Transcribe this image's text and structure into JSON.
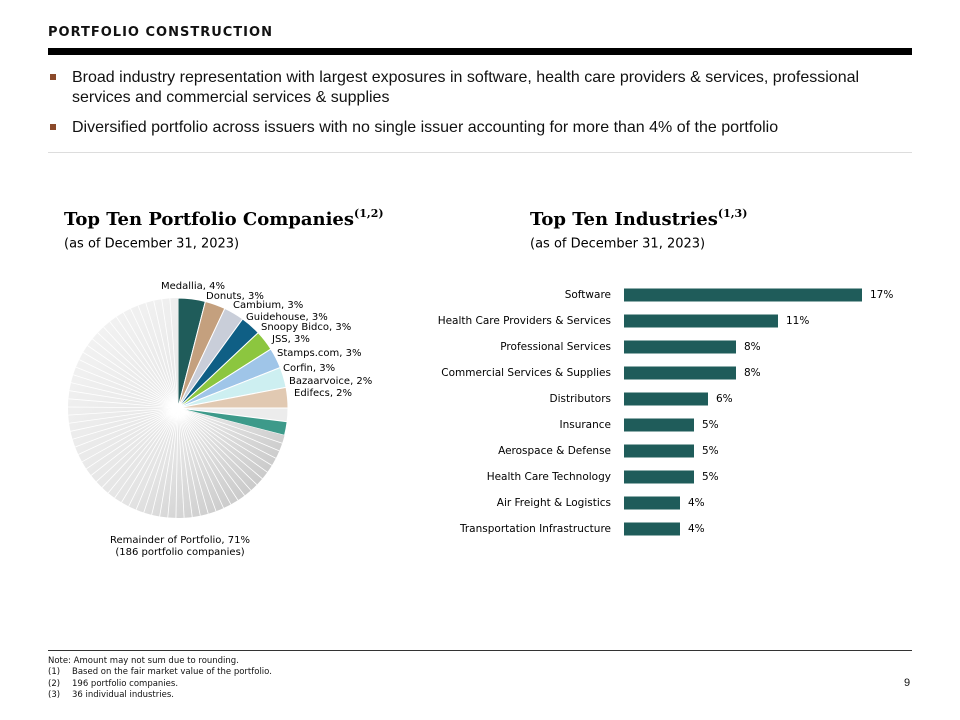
{
  "header": {
    "title": "PORTFOLIO CONSTRUCTION"
  },
  "bullets": [
    "Broad industry representation with largest exposures in software, health care providers & services, professional services and commercial services & supplies",
    "Diversified portfolio across issuers with no single issuer accounting for more than 4% of the portfolio"
  ],
  "chart_data": [
    {
      "type": "pie",
      "title": "Top Ten Portfolio Companies",
      "title_note": "(1,2)",
      "subtitle": "(as of December 31, 2023)",
      "labels": [
        "Medallia, 4%",
        "Donuts, 3%",
        "Cambium, 3%",
        "Guidehouse, 3%",
        "Snoopy Bidco, 3%",
        "JSS, 3%",
        "Stamps.com, 3%",
        "Corfin, 3%",
        "Bazaarvoice, 2%",
        "Edifecs, 2%",
        "Remainder of Portfolio, 71%"
      ],
      "values": [
        4,
        3,
        3,
        3,
        3,
        3,
        3,
        3,
        2,
        2,
        71
      ],
      "colors": [
        "#1f5c5a",
        "#c4a07e",
        "#c9ced9",
        "#0f5f85",
        "#8cc63f",
        "#9fc5e8",
        "#cdeff1",
        "#e1c9b2",
        "#ececec",
        "#3d9a8a",
        "#dcdcdc"
      ],
      "remainder_note": "(186 portfolio companies)"
    },
    {
      "type": "hbar",
      "title": "Top Ten Industries",
      "title_note": "(1,3)",
      "subtitle": "(as of December 31, 2023)",
      "categories": [
        "Software",
        "Health Care Providers & Services",
        "Professional Services",
        "Commercial Services & Supplies",
        "Distributors",
        "Insurance",
        "Aerospace & Defense",
        "Health Care Technology",
        "Air Freight & Logistics",
        "Transportation Infrastructure"
      ],
      "values": [
        17,
        11,
        8,
        8,
        6,
        5,
        5,
        5,
        4,
        4
      ],
      "value_labels": [
        "17%",
        "11%",
        "8%",
        "8%",
        "6%",
        "5%",
        "5%",
        "5%",
        "4%",
        "4%"
      ],
      "color": "#1f5c5a"
    }
  ],
  "notes": {
    "intro": "Note: Amount may not sum due to rounding.",
    "items": [
      {
        "marker": "(1)",
        "text": "Based on the fair market value of the portfolio."
      },
      {
        "marker": "(2)",
        "text": "196 portfolio companies."
      },
      {
        "marker": "(3)",
        "text": "36 individual industries."
      }
    ]
  },
  "page_number": "9"
}
